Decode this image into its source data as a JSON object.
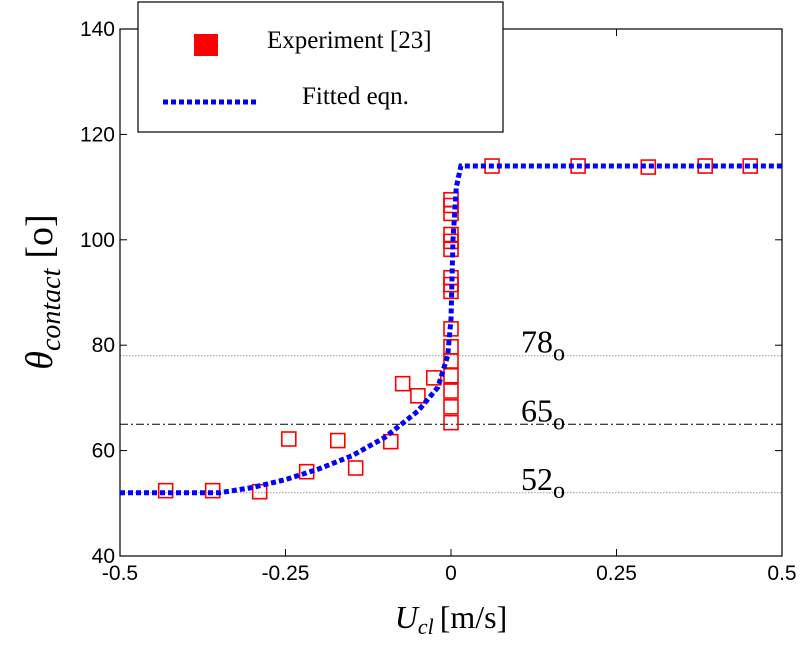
{
  "chart_data": {
    "type": "scatter",
    "ylabel": {
      "symbol": "θ",
      "subscript": "contact",
      "unit": "[o]"
    },
    "xlabel": {
      "symbol": "U",
      "subscript": "cl",
      "unit": "[m/s]"
    },
    "xlim": [
      -0.5,
      0.5
    ],
    "xticks": [
      -0.5,
      -0.25,
      0,
      0.25,
      0.5
    ],
    "ylim": [
      40,
      140
    ],
    "yticks": [
      40,
      60,
      80,
      100,
      120,
      140
    ],
    "legend": "top-left",
    "series": [
      {
        "name": "Experiment [23]",
        "color": "#ff0000",
        "marker": "square",
        "x": [
          -0.431,
          -0.36,
          -0.289,
          -0.245,
          -0.218,
          -0.171,
          -0.144,
          -0.091,
          -0.073,
          -0.05,
          -0.026,
          0,
          0,
          0,
          0,
          0,
          0,
          0,
          0,
          0,
          0,
          0,
          0,
          0,
          0,
          0,
          0,
          0.062,
          0.192,
          0.298,
          0.384,
          0.452
        ],
        "y": [
          52.4,
          52.4,
          52.2,
          62.2,
          56.0,
          61.9,
          56.7,
          61.7,
          72.7,
          70.4,
          73.8,
          65.3,
          68.3,
          71.3,
          74.2,
          77.0,
          79.7,
          83.1,
          90.2,
          91.5,
          92.8,
          98.2,
          99.7,
          101.0,
          105.0,
          106.5,
          107.6,
          114.0,
          114.0,
          113.8,
          114.0,
          114.0
        ]
      },
      {
        "name": "Fitted eqn.",
        "color": "#0000ff",
        "style": "dotted",
        "x": [
          -0.5,
          -0.35,
          -0.3,
          -0.25,
          -0.2,
          -0.15,
          -0.1,
          -0.05,
          -0.02,
          -0.005,
          0,
          0.003,
          0.008,
          0.015,
          0.5
        ],
        "y": [
          52,
          52,
          53,
          54.5,
          56.5,
          59,
          62.5,
          67.5,
          72,
          78,
          85,
          100,
          110,
          114,
          114
        ]
      }
    ],
    "reference_lines": [
      {
        "value": 78,
        "style": "dotted",
        "color": "#999999",
        "label": "78",
        "suffix": "o"
      },
      {
        "value": 65,
        "style": "dashdot",
        "color": "#000000",
        "label": "65",
        "suffix": "o"
      },
      {
        "value": 52,
        "style": "dotted",
        "color": "#999999",
        "label": "52",
        "suffix": "o"
      }
    ]
  }
}
